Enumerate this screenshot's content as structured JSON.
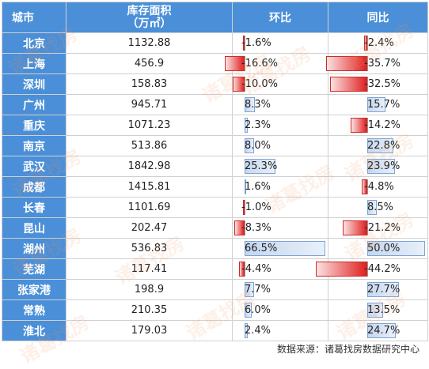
{
  "header": {
    "city": "城市",
    "area_line1": "库存面积",
    "area_line2": "（万㎡）",
    "mom": "环比",
    "yoy": "同比"
  },
  "chart_data": {
    "type": "table",
    "columns": [
      "城市",
      "库存面积（万㎡）",
      "环比",
      "同比"
    ],
    "rows": [
      {
        "city": "北京",
        "area": "1132.88",
        "mom": -1.6,
        "mom_label": "-1.6%",
        "yoy": -2.4,
        "yoy_label": "-2.4%"
      },
      {
        "city": "上海",
        "area": "456.9",
        "mom": -16.6,
        "mom_label": "-16.6%",
        "yoy": -35.7,
        "yoy_label": "-35.7%"
      },
      {
        "city": "深圳",
        "area": "158.83",
        "mom": -10.0,
        "mom_label": "-10.0%",
        "yoy": -32.5,
        "yoy_label": "-32.5%"
      },
      {
        "city": "广州",
        "area": "945.71",
        "mom": 8.3,
        "mom_label": "8.3%",
        "yoy": 15.7,
        "yoy_label": "15.7%"
      },
      {
        "city": "重庆",
        "area": "1071.23",
        "mom": 2.3,
        "mom_label": "2.3%",
        "yoy": -14.2,
        "yoy_label": "-14.2%"
      },
      {
        "city": "南京",
        "area": "513.86",
        "mom": 8.0,
        "mom_label": "8.0%",
        "yoy": 22.8,
        "yoy_label": "22.8%"
      },
      {
        "city": "武汉",
        "area": "1842.98",
        "mom": 25.3,
        "mom_label": "25.3%",
        "yoy": 23.9,
        "yoy_label": "23.9%"
      },
      {
        "city": "成都",
        "area": "1415.81",
        "mom": 1.6,
        "mom_label": "1.6%",
        "yoy": -4.8,
        "yoy_label": "-4.8%"
      },
      {
        "city": "长春",
        "area": "1101.69",
        "mom": -1.0,
        "mom_label": "-1.0%",
        "yoy": 8.5,
        "yoy_label": "8.5%"
      },
      {
        "city": "昆山",
        "area": "202.47",
        "mom": -8.3,
        "mom_label": "-8.3%",
        "yoy": -21.2,
        "yoy_label": "-21.2%"
      },
      {
        "city": "湖州",
        "area": "536.83",
        "mom": 66.5,
        "mom_label": "66.5%",
        "yoy": 50.0,
        "yoy_label": "50.0%"
      },
      {
        "city": "芜湖",
        "area": "117.41",
        "mom": -4.4,
        "mom_label": "-4.4%",
        "yoy": -44.2,
        "yoy_label": "-44.2%"
      },
      {
        "city": "张家港",
        "area": "198.9",
        "mom": 7.7,
        "mom_label": "7.7%",
        "yoy": 27.7,
        "yoy_label": "27.7%"
      },
      {
        "city": "常熟",
        "area": "210.35",
        "mom": 6.0,
        "mom_label": "6.0%",
        "yoy": 13.5,
        "yoy_label": "13.5%"
      },
      {
        "city": "淮北",
        "area": "179.03",
        "mom": 2.4,
        "mom_label": "2.4%",
        "yoy": 24.7,
        "yoy_label": "24.7%"
      }
    ],
    "mom_range": [
      -16.6,
      66.5
    ],
    "yoy_range": [
      -44.2,
      50.0
    ]
  },
  "colors": {
    "header_bg": "#4a8fd8",
    "positive_bar": "#c5d7ef",
    "negative_bar": "#e02020"
  },
  "watermark": "诸葛找房",
  "source": "数据来源：诸葛找房数据研究中心"
}
